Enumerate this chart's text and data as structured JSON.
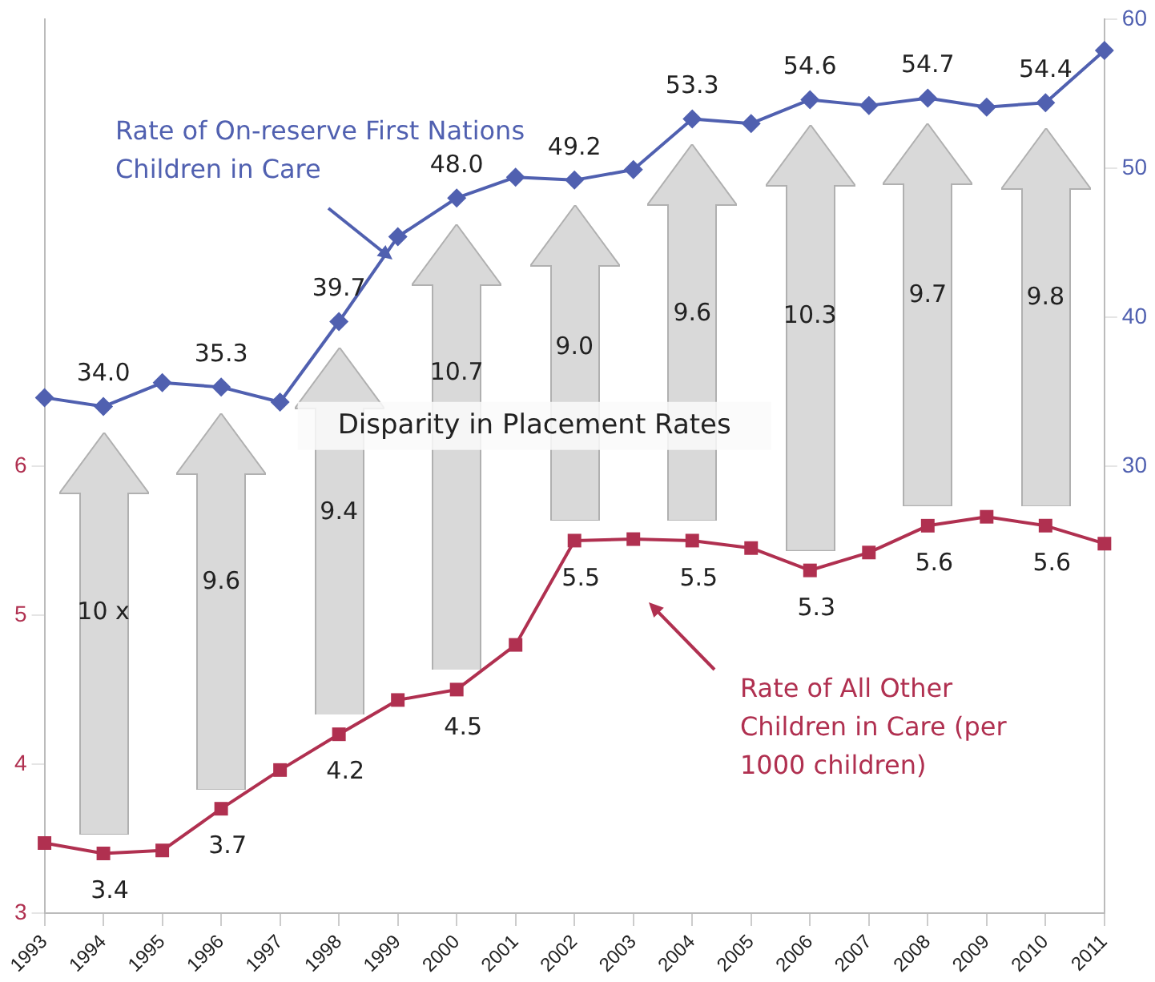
{
  "chart_data": {
    "type": "line",
    "categories": [
      "1993",
      "1994",
      "1995",
      "1996",
      "1997",
      "1998",
      "1999",
      "2000",
      "2001",
      "2002",
      "2003",
      "2004",
      "2005",
      "2006",
      "2007",
      "2008",
      "2009",
      "2010",
      "2011"
    ],
    "series": [
      {
        "name": "Rate of On-reserve First Nations Children in Care",
        "color": "#5060b0",
        "axis": "y2",
        "marker": "diamond",
        "values": [
          34.6,
          34.0,
          35.6,
          35.3,
          34.3,
          39.7,
          45.4,
          48.0,
          49.4,
          49.2,
          49.9,
          53.3,
          53.0,
          54.6,
          54.2,
          54.7,
          54.1,
          54.4,
          57.9
        ],
        "value_labels": [
          null,
          "34.0",
          null,
          "35.3",
          null,
          "39.7",
          null,
          "48.0",
          null,
          "49.2",
          null,
          "53.3",
          null,
          "54.6",
          null,
          "54.7",
          null,
          "54.4",
          null
        ]
      },
      {
        "name": "Rate of All Other Children in Care (per 1000 children)",
        "color": "#b03050",
        "axis": "y",
        "marker": "square",
        "values": [
          3.47,
          3.4,
          3.42,
          3.7,
          3.96,
          4.2,
          4.43,
          4.5,
          4.8,
          5.5,
          5.51,
          5.5,
          5.45,
          5.3,
          5.42,
          5.6,
          5.66,
          5.6,
          5.48
        ],
        "value_labels": [
          null,
          "3.4",
          null,
          "3.7",
          null,
          "4.2",
          null,
          "4.5",
          null,
          "5.5",
          null,
          "5.5",
          null,
          "5.3",
          null,
          "5.6",
          null,
          "5.6",
          null
        ]
      }
    ],
    "ylim": [
      3,
      9
    ],
    "yticks": [
      3,
      4,
      5,
      6
    ],
    "y2lim": [
      0,
      60
    ],
    "y2ticks": [
      30,
      40,
      50,
      60
    ],
    "annotations": [
      "Disparity in Placement Rates",
      "10 x",
      "9.6",
      "9.4",
      "10.7",
      "9.0",
      "9.6",
      "10.3",
      "9.7",
      "9.8"
    ]
  }
}
